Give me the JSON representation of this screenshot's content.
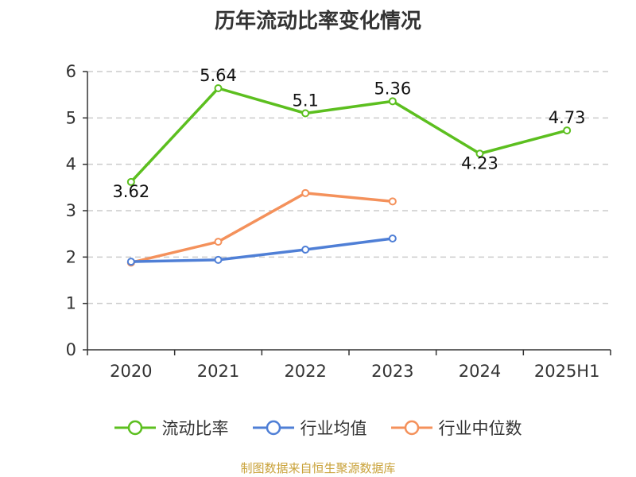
{
  "title": "历年流动比率变化情况",
  "source_note": "制图数据来自恒生聚源数据库",
  "colors": {
    "current_ratio": "#5cbf1f",
    "industry_avg": "#4f7fd6",
    "industry_median": "#f4915b",
    "grid": "#cccccc",
    "axis": "#333333",
    "text": "#333333"
  },
  "chart_data": {
    "type": "line",
    "categories": [
      "2020",
      "2021",
      "2022",
      "2023",
      "2024",
      "2025H1"
    ],
    "ylim": [
      0,
      6
    ],
    "yticks": [
      0,
      1,
      2,
      3,
      4,
      5,
      6
    ],
    "grid": true,
    "legend_position": "bottom",
    "series": [
      {
        "name": "流动比率",
        "key": "current_ratio",
        "values": [
          3.62,
          5.64,
          5.1,
          5.36,
          4.23,
          4.73
        ],
        "labels": [
          "3.62",
          "5.64",
          "5.1",
          "5.36",
          "4.23",
          "4.73"
        ]
      },
      {
        "name": "行业均值",
        "key": "industry_avg",
        "values": [
          1.9,
          1.94,
          2.16,
          2.4,
          null,
          null
        ]
      },
      {
        "name": "行业中位数",
        "key": "industry_median",
        "values": [
          1.88,
          2.33,
          3.38,
          3.2,
          null,
          null
        ]
      }
    ]
  }
}
